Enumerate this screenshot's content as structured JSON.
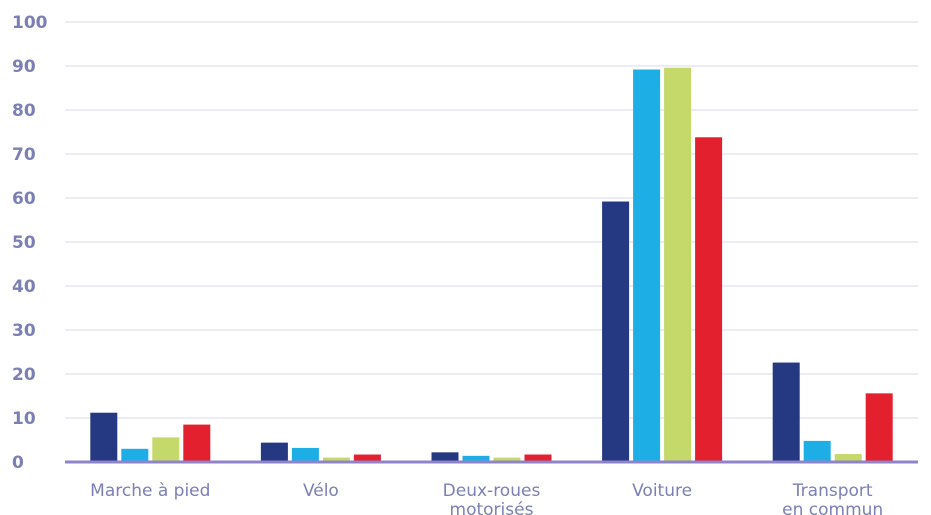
{
  "chart_data": {
    "type": "bar",
    "title": "",
    "xlabel": "",
    "ylabel": "",
    "ylim": [
      0,
      100
    ],
    "yticks": [
      0,
      10,
      20,
      30,
      40,
      50,
      60,
      70,
      80,
      90,
      100
    ],
    "grid": true,
    "legend": "none",
    "categories": [
      [
        "Marche à pied"
      ],
      [
        "Vélo"
      ],
      [
        "Deux-roues",
        "motorisés"
      ],
      [
        "Voiture"
      ],
      [
        "Transport",
        "en commun"
      ]
    ],
    "series": [
      {
        "color": "#253882",
        "values": [
          11.2,
          4.4,
          2.2,
          59.2,
          22.6
        ]
      },
      {
        "color": "#1eaee6",
        "values": [
          3.0,
          3.2,
          1.4,
          89.2,
          4.8
        ]
      },
      {
        "color": "#c5d86a",
        "values": [
          5.6,
          1.0,
          1.0,
          89.6,
          1.8
        ]
      },
      {
        "color": "#e2202e",
        "values": [
          8.5,
          1.7,
          1.7,
          73.8,
          15.6
        ]
      }
    ]
  }
}
